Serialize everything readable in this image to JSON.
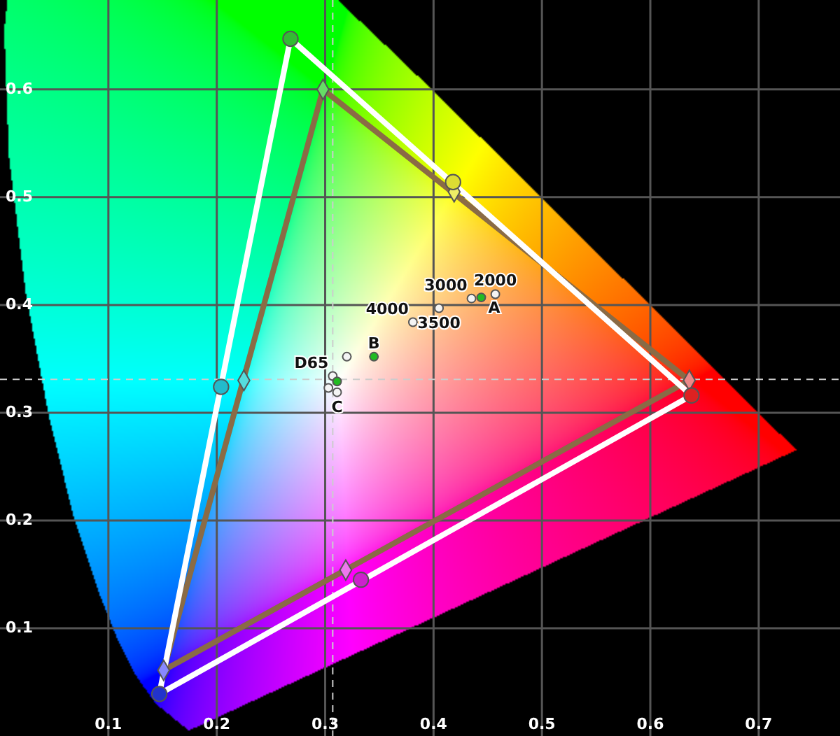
{
  "chart_data": {
    "type": "scatter",
    "xlim": [
      0,
      0.775
    ],
    "ylim": [
      0,
      0.683
    ],
    "xticks": [
      0.1,
      0.2,
      0.3,
      0.4,
      0.5,
      0.6,
      0.7
    ],
    "yticks": [
      0.1,
      0.2,
      0.3,
      0.4,
      0.5,
      0.6
    ],
    "grid": true,
    "ref_lines": [
      {
        "axis": "x",
        "value": 0.307,
        "color": "#cccccc",
        "line_style": "dashed"
      },
      {
        "axis": "y",
        "value": 0.331,
        "color": "#cccccc",
        "line_style": "dashed"
      }
    ],
    "series": [
      {
        "type": "line",
        "color": "#8a6b45",
        "marker": "none",
        "x": [
          0.298,
          0.636
        ],
        "values": [
          0.6,
          0.33
        ]
      },
      {
        "type": "line",
        "color": "#8a6b45",
        "marker": "none",
        "x": [
          0.636,
          0.151
        ],
        "values": [
          0.33,
          0.061
        ]
      },
      {
        "type": "line",
        "color": "#8a6b45",
        "marker": "none",
        "x": [
          0.151,
          0.298
        ],
        "values": [
          0.061,
          0.6
        ]
      },
      {
        "type": "line",
        "color": "#ffffff",
        "marker": "none",
        "x": [
          0.268,
          0.638
        ],
        "values": [
          0.647,
          0.316
        ]
      },
      {
        "type": "line",
        "color": "#ffffff",
        "marker": "none",
        "x": [
          0.638,
          0.147
        ],
        "values": [
          0.316,
          0.039
        ]
      },
      {
        "type": "line",
        "color": "#ffffff",
        "marker": "none",
        "x": [
          0.147,
          0.268
        ],
        "values": [
          0.039,
          0.647
        ]
      },
      {
        "type": "scatter",
        "marker": "diamond",
        "x": [
          0.298,
          0.636,
          0.151,
          0.225,
          0.419,
          0.319
        ],
        "values": [
          0.6,
          0.33,
          0.061,
          0.33,
          0.505,
          0.154
        ],
        "colors": [
          "#66dd66",
          "#ee8888",
          "#8888ff",
          "#55dddd",
          "#eeee66",
          "#ee77ee"
        ]
      },
      {
        "type": "scatter",
        "marker": "circle",
        "x": [
          0.268,
          0.638,
          0.147,
          0.204,
          0.418,
          0.333
        ],
        "values": [
          0.647,
          0.316,
          0.039,
          0.324,
          0.514,
          0.145
        ],
        "colors": [
          "#33bb33",
          "#dd2222",
          "#2233cc",
          "#22bbcc",
          "#dddd33",
          "#cc22cc"
        ]
      },
      {
        "type": "scatter",
        "marker": "circle",
        "color": "#f4f4f4",
        "x": [
          0.457,
          0.435,
          0.405,
          0.381,
          0.32,
          0.307,
          0.303,
          0.311
        ],
        "values": [
          0.41,
          0.406,
          0.397,
          0.384,
          0.352,
          0.334,
          0.323,
          0.319
        ]
      },
      {
        "type": "scatter",
        "marker": "circle",
        "color": "#22bb22",
        "x": [
          0.444,
          0.345,
          0.311
        ],
        "values": [
          0.407,
          0.352,
          0.329
        ]
      }
    ],
    "annotations": [
      {
        "text": "2000",
        "x": 0.457,
        "y": 0.41
      },
      {
        "text": "3000",
        "x": 0.435,
        "y": 0.406
      },
      {
        "text": "3500",
        "x": 0.405,
        "y": 0.397
      },
      {
        "text": "4000",
        "x": 0.381,
        "y": 0.384
      },
      {
        "text": "A",
        "x": 0.444,
        "y": 0.407
      },
      {
        "text": "B",
        "x": 0.345,
        "y": 0.352
      },
      {
        "text": "D65",
        "x": 0.307,
        "y": 0.334
      },
      {
        "text": "C",
        "x": 0.311,
        "y": 0.319
      }
    ]
  }
}
